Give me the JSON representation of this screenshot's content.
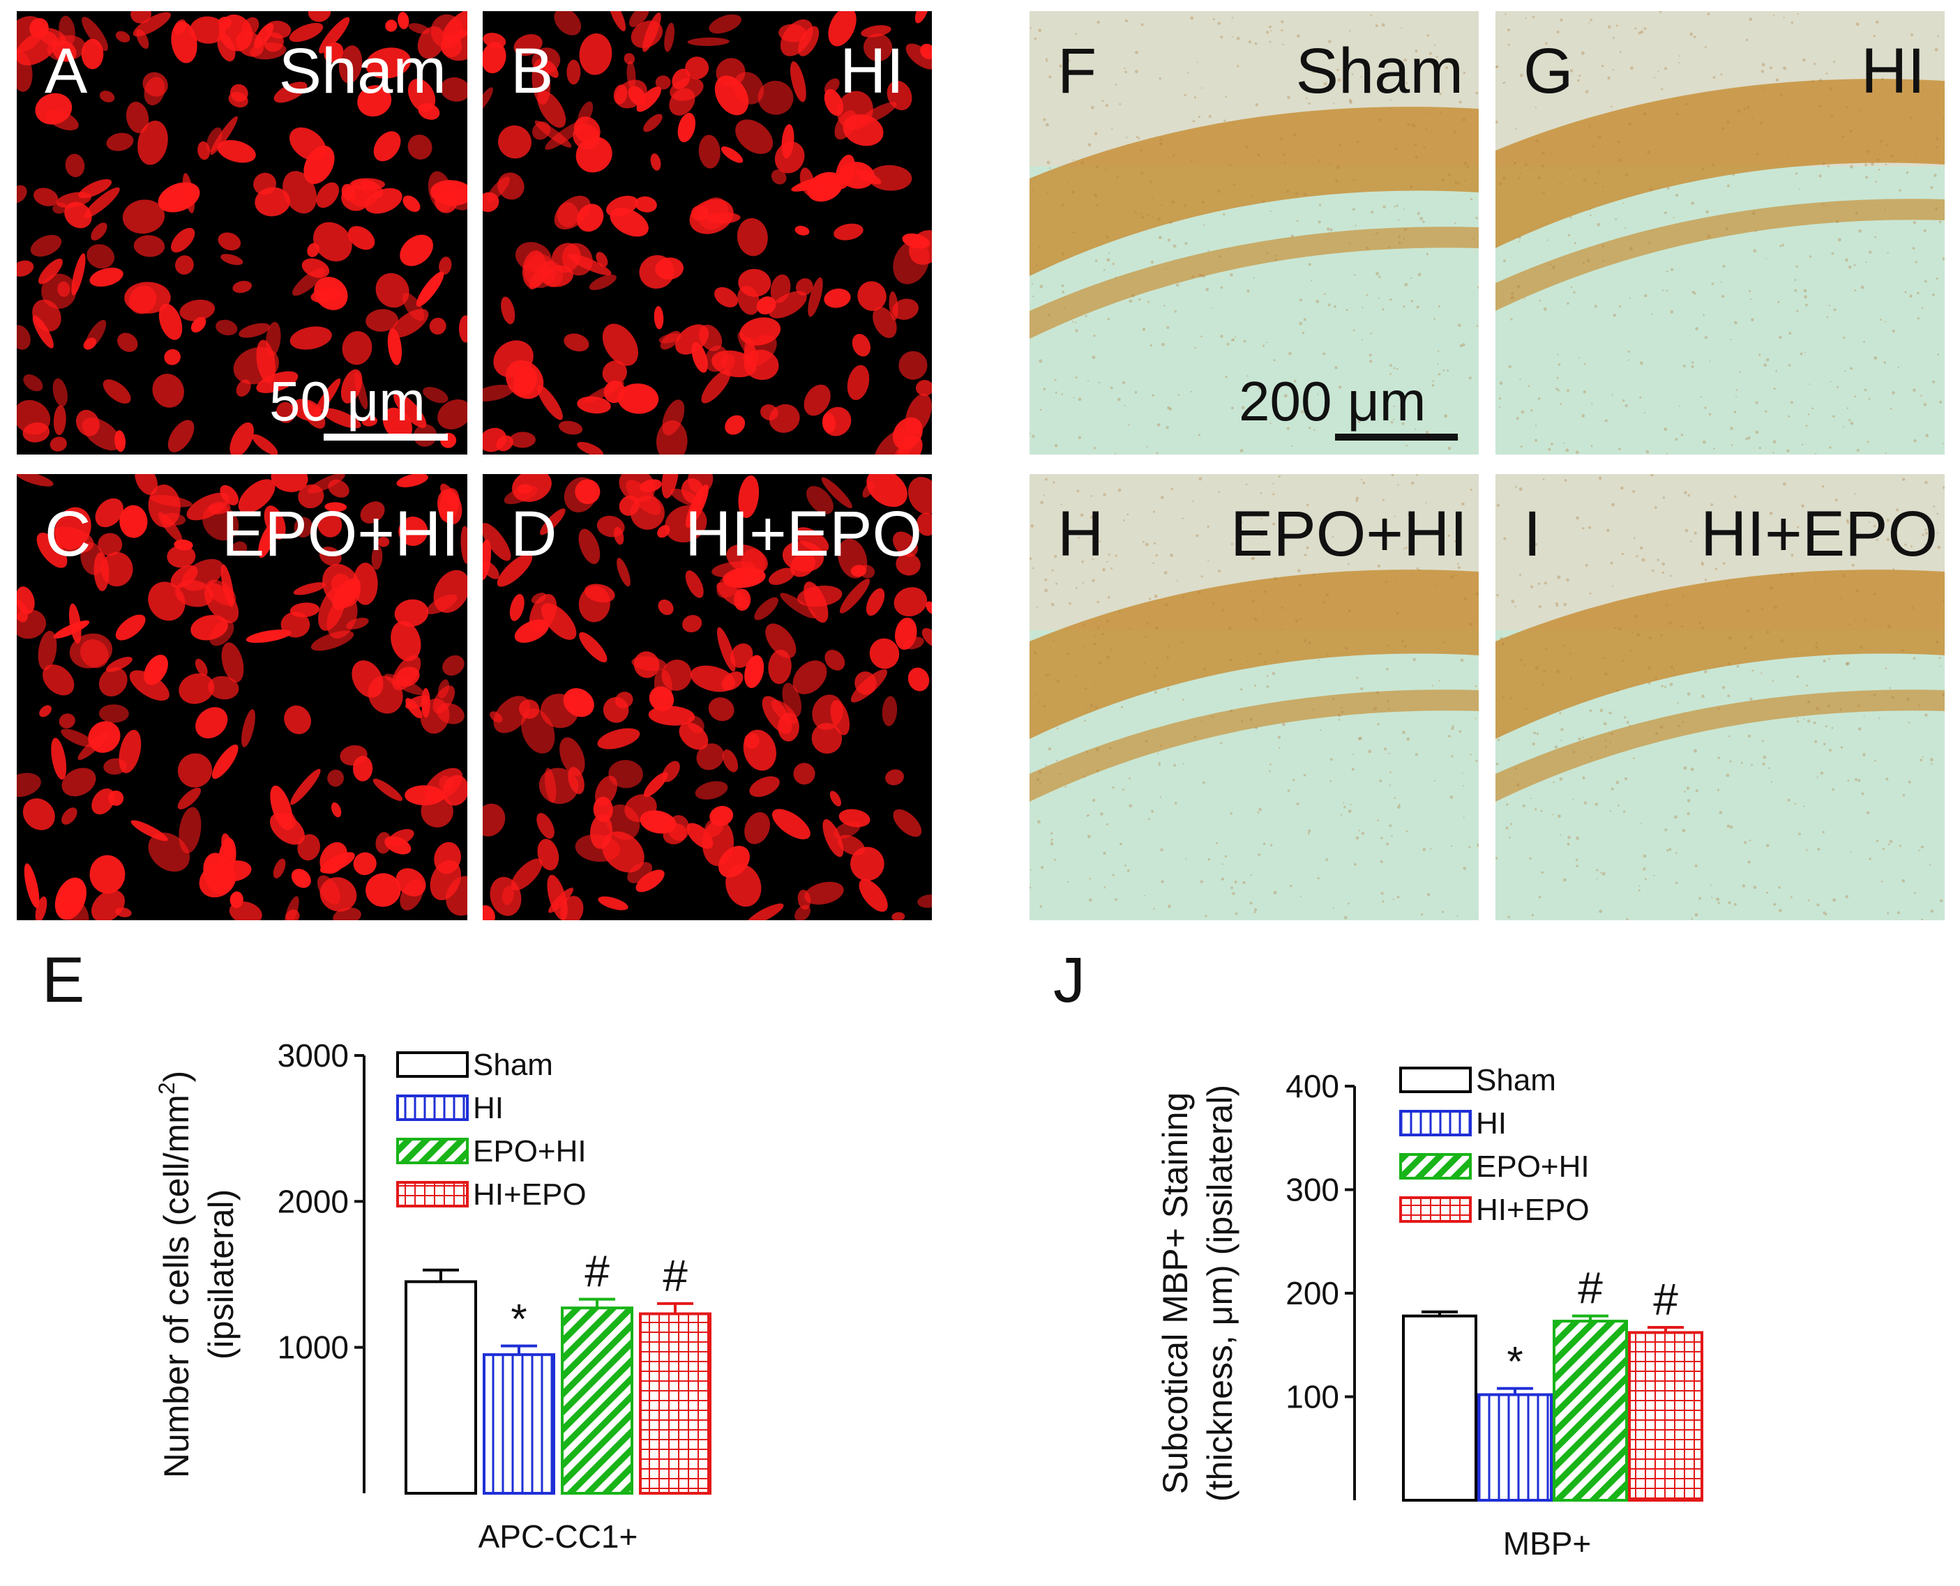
{
  "fluor_panels": [
    {
      "letter": "A",
      "condition": "Sham"
    },
    {
      "letter": "B",
      "condition": "HI"
    },
    {
      "letter": "C",
      "condition": "EPO+HI"
    },
    {
      "letter": "D",
      "condition": "HI+EPO"
    }
  ],
  "fluor_scale": "50 μm",
  "bright_panels": [
    {
      "letter": "F",
      "condition": "Sham"
    },
    {
      "letter": "G",
      "condition": "HI"
    },
    {
      "letter": "H",
      "condition": "EPO+HI"
    },
    {
      "letter": "I",
      "condition": "HI+EPO"
    }
  ],
  "bright_scale": "200 μm",
  "chart_letters": {
    "left": "E",
    "right": "J"
  },
  "colors": {
    "Sham": "#000000",
    "HI": "#1f2fd6",
    "EPO+HI": "#18b418",
    "HI+EPO": "#e41818",
    "fluor_cells": "#ff1a1a",
    "myelin": "#c8913a"
  },
  "chart_data": [
    {
      "type": "bar",
      "ylabel_line1": "Number of cells (cell/mm",
      "ylabel_sup": "2",
      "ylabel_line1_end": ")",
      "ylabel_line2": "(ipsilateral)",
      "xlabel": "APC-CC1+",
      "ylim": [
        0,
        3000
      ],
      "yticks": [
        1000,
        2000,
        3000
      ],
      "series": [
        {
          "name": "Sham",
          "value": 1450,
          "error": 80,
          "marker": "",
          "pattern": "none"
        },
        {
          "name": "HI",
          "value": 950,
          "error": 60,
          "marker": "*",
          "pattern": "vertical"
        },
        {
          "name": "EPO+HI",
          "value": 1270,
          "error": 60,
          "marker": "#",
          "pattern": "diagonal"
        },
        {
          "name": "HI+EPO",
          "value": 1230,
          "error": 70,
          "marker": "#",
          "pattern": "grid"
        }
      ],
      "legend": "top-left"
    },
    {
      "type": "bar",
      "ylabel_line1": "Subcotical MBP+ Staining",
      "ylabel_line2": "(thickness, μm) (ipsilateral)",
      "xlabel": "MBP+",
      "ylim": [
        0,
        400
      ],
      "yticks": [
        100,
        200,
        300,
        400
      ],
      "series": [
        {
          "name": "Sham",
          "value": 178,
          "error": 4,
          "marker": "",
          "pattern": "none"
        },
        {
          "name": "HI",
          "value": 102,
          "error": 6,
          "marker": "*",
          "pattern": "vertical"
        },
        {
          "name": "EPO+HI",
          "value": 173,
          "error": 5,
          "marker": "#",
          "pattern": "diagonal"
        },
        {
          "name": "HI+EPO",
          "value": 162,
          "error": 5,
          "marker": "#",
          "pattern": "grid"
        }
      ],
      "legend": "top-left"
    }
  ]
}
